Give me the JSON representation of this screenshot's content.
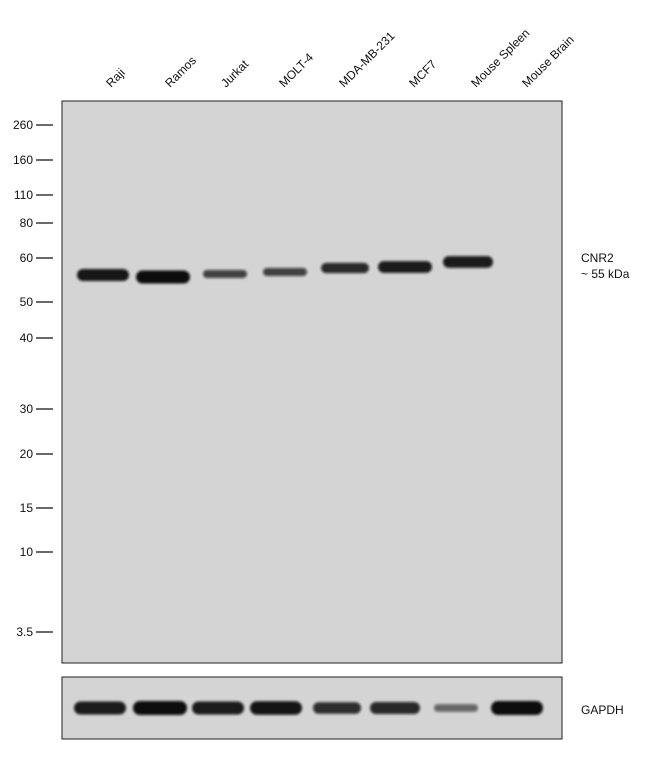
{
  "lanes": [
    "Raji",
    "Ramos",
    "Jurkat",
    "MOLT-4",
    "MDA-MB-231",
    "MCF7",
    "Mouse Spleen",
    "Mouse Brain"
  ],
  "markers": [
    "260",
    "160",
    "110",
    "80",
    "60",
    "50",
    "40",
    "30",
    "20",
    "15",
    "10",
    "3.5"
  ],
  "target": {
    "name": "CNR2",
    "size": "~ 55 kDa"
  },
  "loading_control": {
    "name": "GAPDH"
  },
  "colors": {
    "membrane": "#d4d4d4",
    "band": "#0d0d0d"
  },
  "band_intensity": {
    "target": [
      0.9,
      1.0,
      0.45,
      0.45,
      0.7,
      0.85,
      0.85,
      0.0
    ],
    "loading_control": [
      0.9,
      1.0,
      0.9,
      0.95,
      0.75,
      0.8,
      0.35,
      1.0
    ]
  }
}
